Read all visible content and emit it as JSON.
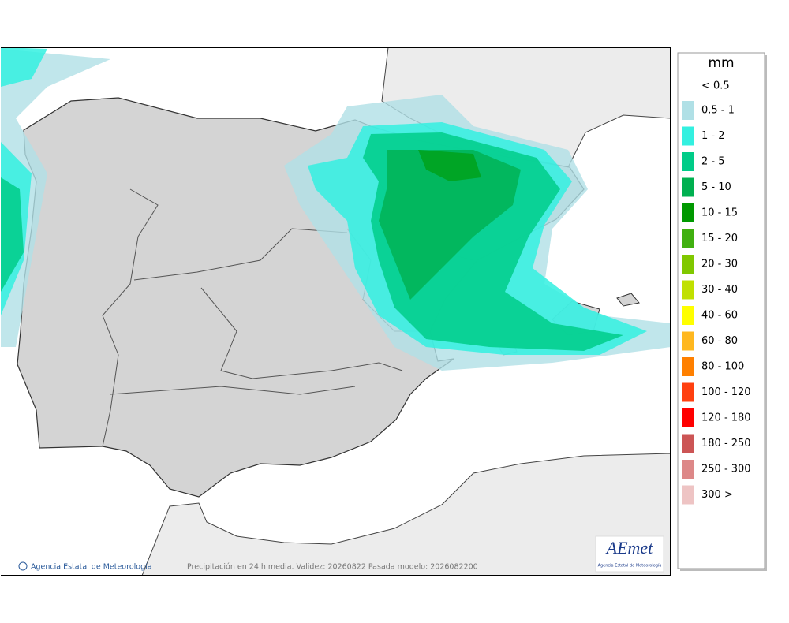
{
  "legend": {
    "title": "mm",
    "items": [
      {
        "label": "< 0.5",
        "color": "#ffffff"
      },
      {
        "label": "0.5 - 1",
        "color": "#b0e0e6"
      },
      {
        "label": "1 - 2",
        "color": "#33f0e0"
      },
      {
        "label": "2 - 5",
        "color": "#00cc88"
      },
      {
        "label": "5 - 10",
        "color": "#00b050"
      },
      {
        "label": "10 - 15",
        "color": "#009900"
      },
      {
        "label": "15 - 20",
        "color": "#40b010"
      },
      {
        "label": "20 - 30",
        "color": "#80c800"
      },
      {
        "label": "30 - 40",
        "color": "#c0e000"
      },
      {
        "label": "40 - 60",
        "color": "#ffff00"
      },
      {
        "label": "60 - 80",
        "color": "#ffb820"
      },
      {
        "label": "80 - 100",
        "color": "#ff8000"
      },
      {
        "label": "100 - 120",
        "color": "#ff4010"
      },
      {
        "label": "120 - 180",
        "color": "#ff0000"
      },
      {
        "label": "180 - 250",
        "color": "#cc5555"
      },
      {
        "label": "250 - 300",
        "color": "#dd8888"
      },
      {
        "label": "300 >",
        "color": "#eec4c4"
      }
    ]
  },
  "footer": {
    "credit": "Agencia Estatal de Meteorología",
    "caption": "Precipitación en 24 h media. Validez: 20260822 Pasada modelo: 2026082200"
  },
  "logo": {
    "name": "AEmet",
    "subtitle": "Agencia Estatal de Meteorología"
  }
}
